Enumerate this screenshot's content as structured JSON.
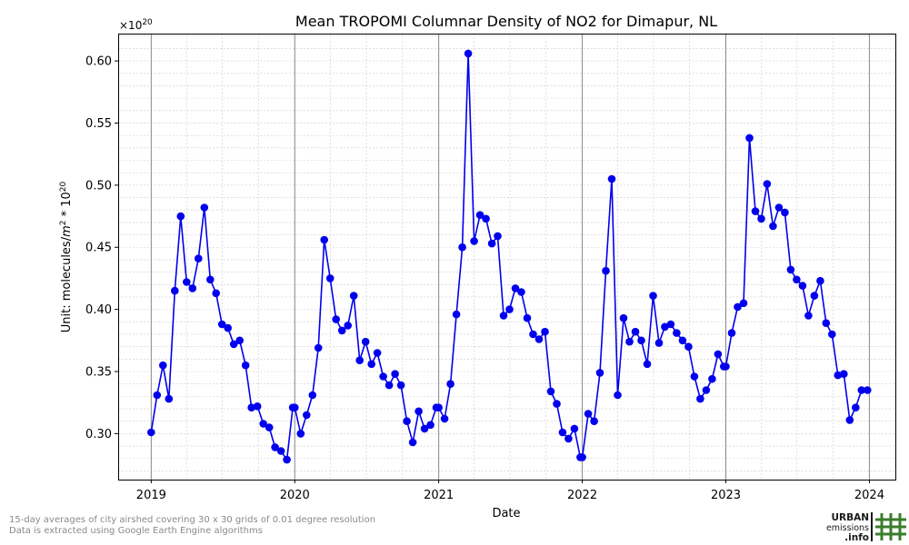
{
  "chart_data": {
    "type": "line",
    "title": "Mean TROPOMI Columnar Density of NO2 for Dimapur, NL",
    "xlabel": "Date",
    "ylabel_prefix": "Unit: molecules/",
    "ylabel_m": "m",
    "ylabel_sq": "2",
    "ylabel_mid": " * 10",
    "ylabel_exp": "20",
    "scale_base": "×10",
    "scale_exp": "20",
    "xlim": [
      "2018-10-09",
      "2024-03-07"
    ],
    "ylim": [
      0.263,
      0.622
    ],
    "x_ticks": [
      {
        "date": "2019-01-01",
        "label": "2019"
      },
      {
        "date": "2020-01-01",
        "label": "2020"
      },
      {
        "date": "2021-01-01",
        "label": "2021"
      },
      {
        "date": "2022-01-01",
        "label": "2022"
      },
      {
        "date": "2023-01-01",
        "label": "2023"
      },
      {
        "date": "2024-01-01",
        "label": "2024"
      }
    ],
    "y_ticks": [
      {
        "value": 0.3,
        "label": "0.30"
      },
      {
        "value": 0.35,
        "label": "0.35"
      },
      {
        "value": 0.4,
        "label": "0.40"
      },
      {
        "value": 0.45,
        "label": "0.45"
      },
      {
        "value": 0.5,
        "label": "0.50"
      },
      {
        "value": 0.55,
        "label": "0.55"
      },
      {
        "value": 0.6,
        "label": "0.60"
      }
    ],
    "grid": true,
    "line_color": "#0000ee",
    "marker_color": "#0000ee",
    "year_line_color": "#888888",
    "series": [
      {
        "x": [
          "2019-01-01",
          "2019-01-16",
          "2019-01-31",
          "2019-02-15",
          "2019-03-02",
          "2019-03-17",
          "2019-04-01",
          "2019-04-16",
          "2019-05-01",
          "2019-05-16",
          "2019-05-31",
          "2019-06-15",
          "2019-06-30",
          "2019-07-15",
          "2019-07-30",
          "2019-08-14",
          "2019-08-29",
          "2019-09-13",
          "2019-09-28",
          "2019-10-13",
          "2019-10-28",
          "2019-11-12",
          "2019-11-27",
          "2019-12-12",
          "2019-12-27",
          "2020-01-01",
          "2020-01-16",
          "2020-01-31",
          "2020-02-15",
          "2020-03-01",
          "2020-03-16",
          "2020-03-31",
          "2020-04-15",
          "2020-04-30",
          "2020-05-15",
          "2020-05-30",
          "2020-06-14",
          "2020-06-29",
          "2020-07-14",
          "2020-07-29",
          "2020-08-13",
          "2020-08-28",
          "2020-09-12",
          "2020-09-27",
          "2020-10-12",
          "2020-10-27",
          "2020-11-11",
          "2020-11-26",
          "2020-12-11",
          "2020-12-26",
          "2021-01-01",
          "2021-01-16",
          "2021-01-31",
          "2021-02-15",
          "2021-03-02",
          "2021-03-17",
          "2021-04-01",
          "2021-04-16",
          "2021-05-01",
          "2021-05-16",
          "2021-05-31",
          "2021-06-15",
          "2021-06-30",
          "2021-07-15",
          "2021-07-30",
          "2021-08-14",
          "2021-08-29",
          "2021-09-13",
          "2021-09-28",
          "2021-10-13",
          "2021-10-28",
          "2021-11-12",
          "2021-11-27",
          "2021-12-12",
          "2021-12-27",
          "2022-01-01",
          "2022-01-16",
          "2022-01-31",
          "2022-02-15",
          "2022-03-02",
          "2022-03-17",
          "2022-04-01",
          "2022-04-16",
          "2022-05-01",
          "2022-05-16",
          "2022-05-31",
          "2022-06-15",
          "2022-06-30",
          "2022-07-15",
          "2022-07-30",
          "2022-08-14",
          "2022-08-29",
          "2022-09-13",
          "2022-09-28",
          "2022-10-13",
          "2022-10-28",
          "2022-11-12",
          "2022-11-27",
          "2022-12-12",
          "2022-12-27",
          "2023-01-01",
          "2023-01-16",
          "2023-01-31",
          "2023-02-15",
          "2023-03-02",
          "2023-03-17",
          "2023-04-01",
          "2023-04-16",
          "2023-05-01",
          "2023-05-16",
          "2023-05-31",
          "2023-06-15",
          "2023-06-30",
          "2023-07-15",
          "2023-07-30",
          "2023-08-14",
          "2023-08-29",
          "2023-09-13",
          "2023-09-28",
          "2023-10-13",
          "2023-10-28",
          "2023-11-12",
          "2023-11-27",
          "2023-12-12",
          "2023-12-27"
        ],
        "y": [
          0.301,
          0.331,
          0.355,
          0.328,
          0.415,
          0.475,
          0.422,
          0.417,
          0.441,
          0.482,
          0.424,
          0.413,
          0.388,
          0.385,
          0.372,
          0.375,
          0.355,
          0.321,
          0.322,
          0.308,
          0.305,
          0.289,
          0.286,
          0.279,
          0.321,
          0.321,
          0.3,
          0.315,
          0.331,
          0.369,
          0.456,
          0.425,
          0.392,
          0.383,
          0.387,
          0.411,
          0.359,
          0.374,
          0.356,
          0.365,
          0.346,
          0.339,
          0.348,
          0.339,
          0.31,
          0.293,
          0.318,
          0.304,
          0.307,
          0.321,
          0.321,
          0.312,
          0.34,
          0.396,
          0.45,
          0.606,
          0.455,
          0.476,
          0.473,
          0.453,
          0.459,
          0.395,
          0.4,
          0.417,
          0.414,
          0.393,
          0.38,
          0.376,
          0.382,
          0.334,
          0.324,
          0.301,
          0.296,
          0.304,
          0.281,
          0.281,
          0.316,
          0.31,
          0.349,
          0.431,
          0.505,
          0.331,
          0.393,
          0.374,
          0.382,
          0.375,
          0.356,
          0.411,
          0.373,
          0.386,
          0.388,
          0.381,
          0.375,
          0.37,
          0.346,
          0.328,
          0.335,
          0.344,
          0.364,
          0.354,
          0.354,
          0.381,
          0.402,
          0.405,
          0.538,
          0.479,
          0.473,
          0.501,
          0.467,
          0.482,
          0.478,
          0.432,
          0.424,
          0.419,
          0.395,
          0.411,
          0.423,
          0.389,
          0.38,
          0.347,
          0.348,
          0.311,
          0.321,
          0.335,
          0.335
        ]
      }
    ]
  },
  "footnotes": {
    "line1": "15-day averages of city airshed covering 30 x 30 grids of 0.01 degree resolution",
    "line2": "Data is extracted using Google Earth Engine algorithms"
  },
  "logo": {
    "line1": "URBAN",
    "line2": "emissions",
    "line3": ".info",
    "text_color": "#1a1a1a",
    "accent_color": "#3a7d2c"
  }
}
